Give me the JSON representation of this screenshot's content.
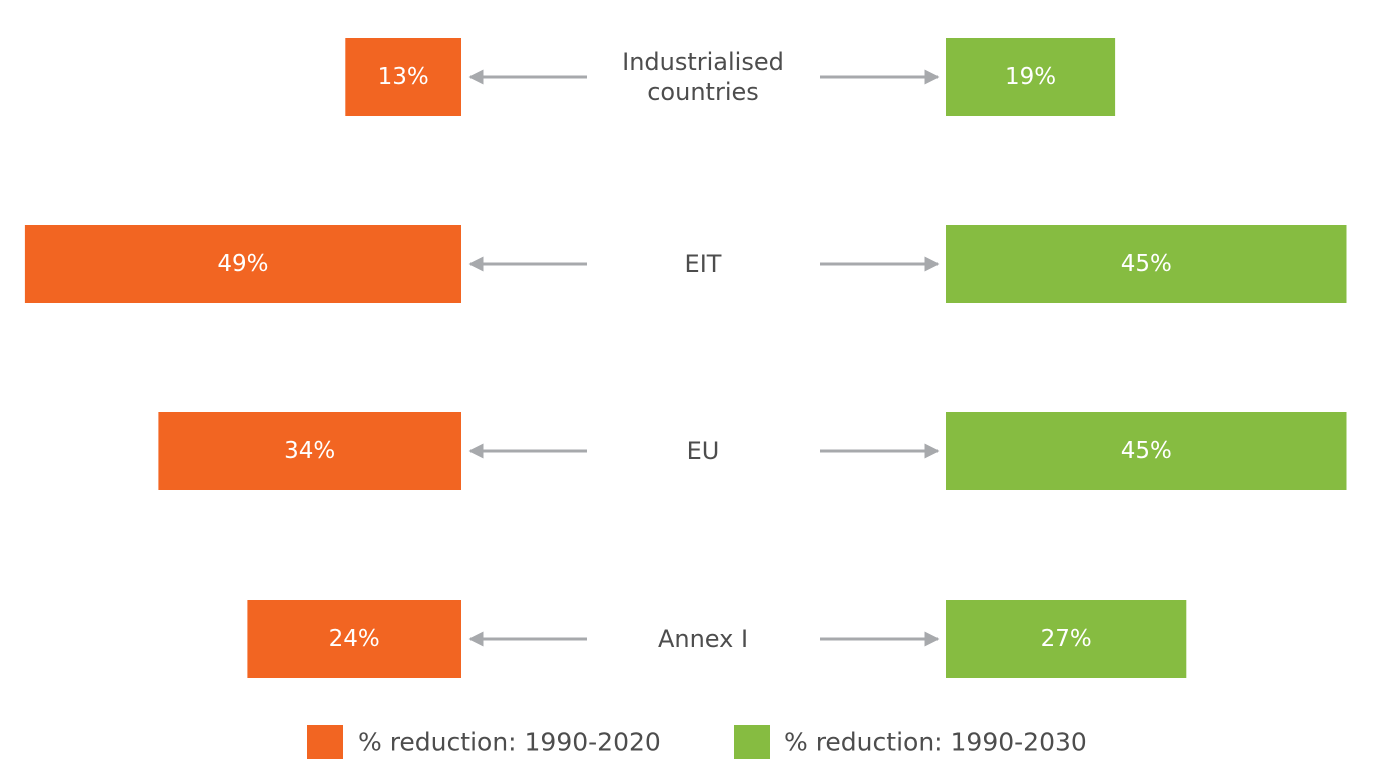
{
  "chart_data": {
    "type": "bar",
    "categories": [
      [
        "Industrialised",
        "countries"
      ],
      [
        "EIT"
      ],
      [
        "EU"
      ],
      [
        "Annex I"
      ]
    ],
    "series": [
      {
        "name": "% reduction: 1990-2020",
        "values": [
          13,
          49,
          34,
          24
        ],
        "labels": [
          "13%",
          "49%",
          "34%",
          "24%"
        ],
        "color": "#f26522",
        "direction": "left"
      },
      {
        "name": "% reduction: 1990-2030",
        "values": [
          19,
          45,
          45,
          27
        ],
        "labels": [
          "19%",
          "45%",
          "45%",
          "27%"
        ],
        "color": "#86bc41",
        "direction": "right"
      }
    ],
    "arrow_color": "#a7a9ac",
    "legend_position": "bottom-center"
  }
}
